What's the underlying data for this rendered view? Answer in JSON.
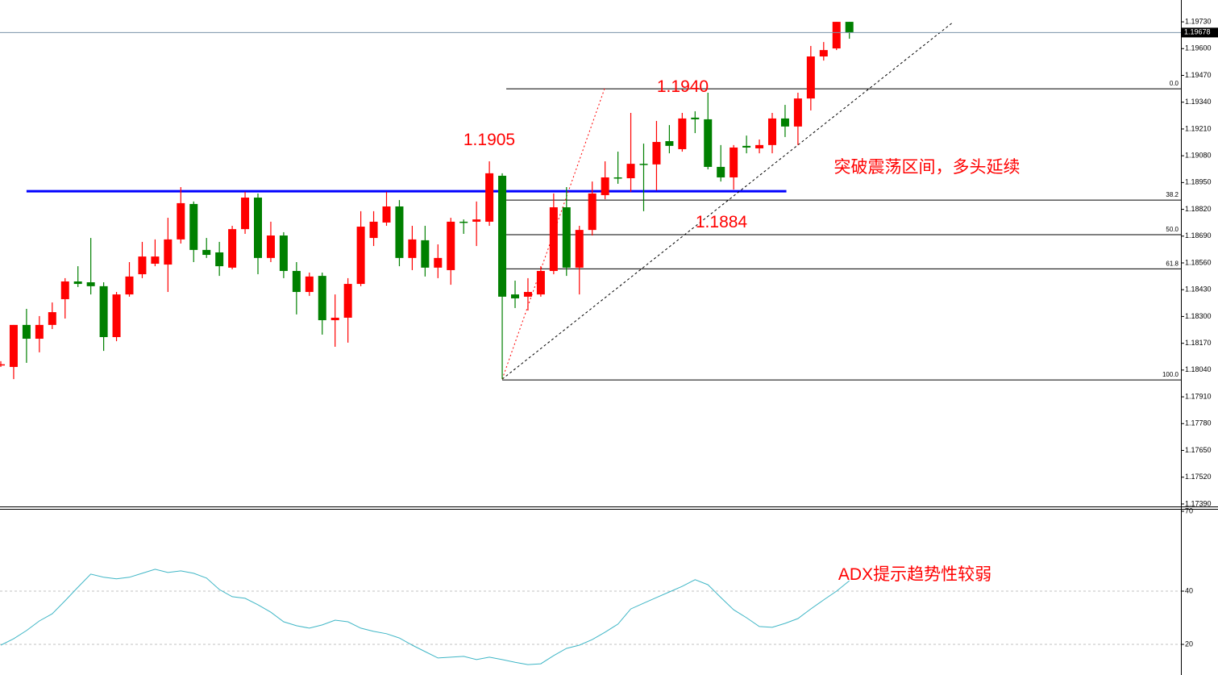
{
  "chart_data": [
    {
      "type": "candlestick",
      "up_color": "#ff0000",
      "down_color": "#008000",
      "open": [
        1.18067,
        1.18055,
        1.18259,
        1.18192,
        1.18259,
        1.18384,
        1.1847,
        1.18466,
        1.18447,
        1.182,
        1.18407,
        1.18505,
        1.18556,
        1.18552,
        1.18674,
        1.18846,
        1.18623,
        1.18611,
        1.18537,
        1.18724,
        1.18877,
        1.18584,
        1.18693,
        1.18521,
        1.18419,
        1.18497,
        1.18282,
        1.18294,
        1.18458,
        1.18681,
        1.18756,
        1.18834,
        1.18584,
        1.1867,
        1.18537,
        1.18525,
        1.1876,
        1.1876,
        1.1876,
        1.18983,
        1.18407,
        1.18396,
        1.18407,
        1.18521,
        1.1883,
        1.18537,
        1.1872,
        1.18889,
        1.18975,
        1.18971,
        1.19041,
        1.19038,
        1.19151,
        1.19112,
        1.19265,
        1.19257,
        1.19026,
        1.18975,
        1.19128,
        1.19116,
        1.19132,
        1.19261,
        1.19222,
        1.19358,
        1.19562,
        1.19601,
        1.1973
      ],
      "high": [
        1.18083,
        1.18259,
        1.18337,
        1.18302,
        1.18368,
        1.18486,
        1.18544,
        1.18681,
        1.18466,
        1.18419,
        1.18564,
        1.18662,
        1.18674,
        1.18779,
        1.18928,
        1.18858,
        1.18681,
        1.18662,
        1.1874,
        1.18905,
        1.18897,
        1.1876,
        1.18709,
        1.18564,
        1.18513,
        1.18513,
        1.18407,
        1.18486,
        1.18811,
        1.18811,
        1.18905,
        1.18865,
        1.1874,
        1.1874,
        1.1865,
        1.18779,
        1.18771,
        1.18858,
        1.19053,
        1.18995,
        1.18474,
        1.18486,
        1.18544,
        1.18897,
        1.18928,
        1.1874,
        1.18955,
        1.19053,
        1.191,
        1.19288,
        1.19139,
        1.19249,
        1.19229,
        1.19288,
        1.19296,
        1.19386,
        1.19132,
        1.19132,
        1.19178,
        1.19159,
        1.19288,
        1.19327,
        1.19386,
        1.19613,
        1.19632,
        1.1973,
        1.1973
      ],
      "low": [
        1.18055,
        1.17996,
        1.18075,
        1.18126,
        1.18239,
        1.1829,
        1.18443,
        1.18407,
        1.18133,
        1.1818,
        1.18396,
        1.18486,
        1.18544,
        1.18419,
        1.18654,
        1.18564,
        1.18584,
        1.18497,
        1.18529,
        1.18701,
        1.18505,
        1.18564,
        1.18486,
        1.1831,
        1.184,
        1.18212,
        1.18153,
        1.18173,
        1.18447,
        1.18642,
        1.1874,
        1.18544,
        1.18525,
        1.18494,
        1.18486,
        1.18454,
        1.18701,
        1.18642,
        1.1874,
        1.17996,
        1.18341,
        1.18329,
        1.18396,
        1.18505,
        1.18497,
        1.18407,
        1.18693,
        1.18869,
        1.18944,
        1.18905,
        1.18811,
        1.18912,
        1.19092,
        1.191,
        1.1919,
        1.19014,
        1.18955,
        1.18916,
        1.19092,
        1.19092,
        1.19092,
        1.19171,
        1.19132,
        1.193,
        1.19542,
        1.19593,
        1.19648
      ],
      "close": [
        1.18068,
        1.18259,
        1.18192,
        1.18259,
        1.18321,
        1.1847,
        1.18458,
        1.18447,
        1.182,
        1.18407,
        1.18494,
        1.18591,
        1.18591,
        1.18674,
        1.1885,
        1.18623,
        1.18599,
        1.18544,
        1.18724,
        1.18877,
        1.18584,
        1.18693,
        1.18521,
        1.18419,
        1.18494,
        1.18282,
        1.18294,
        1.18458,
        1.18736,
        1.1876,
        1.18834,
        1.18584,
        1.18674,
        1.18537,
        1.18584,
        1.1876,
        1.18758,
        1.18771,
        1.18995,
        1.18396,
        1.18388,
        1.18419,
        1.18521,
        1.1883,
        1.18537,
        1.1872,
        1.18897,
        1.18975,
        1.18971,
        1.19041,
        1.19038,
        1.19147,
        1.19128,
        1.19261,
        1.19257,
        1.19026,
        1.18975,
        1.1912,
        1.1912,
        1.19132,
        1.19261,
        1.19222,
        1.19358,
        1.19562,
        1.19593,
        1.1973,
        1.19679
      ],
      "ylim": [
        1.17378,
        1.19836
      ],
      "yticks": [
        {
          "value": 1.1973,
          "label": "1.19730"
        },
        {
          "value": 1.196,
          "label": "1.19600"
        },
        {
          "value": 1.1947,
          "label": "1.19470"
        },
        {
          "value": 1.1934,
          "label": "1.19340"
        },
        {
          "value": 1.1921,
          "label": "1.19210"
        },
        {
          "value": 1.1908,
          "label": "1.19080"
        },
        {
          "value": 1.1895,
          "label": "1.18950"
        },
        {
          "value": 1.1882,
          "label": "1.18820"
        },
        {
          "value": 1.1869,
          "label": "1.18690"
        },
        {
          "value": 1.1856,
          "label": "1.18560"
        },
        {
          "value": 1.1843,
          "label": "1.18430"
        },
        {
          "value": 1.183,
          "label": "1.18300"
        },
        {
          "value": 1.1817,
          "label": "1.18170"
        },
        {
          "value": 1.1804,
          "label": "1.18040"
        },
        {
          "value": 1.1791,
          "label": "1.17910"
        },
        {
          "value": 1.1778,
          "label": "1.17780"
        },
        {
          "value": 1.1765,
          "label": "1.17650"
        },
        {
          "value": 1.1752,
          "label": "1.17520"
        },
        {
          "value": 1.1739,
          "label": "1.17390"
        }
      ],
      "current_price": 1.19678,
      "resistance": {
        "value": 1.18908,
        "from": 2,
        "to": 61.1,
        "color": "#0000ff"
      },
      "fibonacci": {
        "from": 39,
        "levels": [
          {
            "label": "0.0",
            "price": 1.19405
          },
          {
            "label": "38.2",
            "price": 1.18865
          },
          {
            "label": "50.0",
            "price": 1.18697
          },
          {
            "label": "61.8",
            "price": 1.18531
          },
          {
            "label": "100.0",
            "price": 1.17992
          }
        ]
      },
      "trendlines": [
        {
          "x": [
            39,
            74.1
          ],
          "y": [
            1.17996,
            1.1973
          ],
          "color": "#000000",
          "dash": "3,3"
        },
        {
          "x": [
            39,
            47
          ],
          "y": [
            1.17996,
            1.19413
          ],
          "color": "#ff0000",
          "dash": "2,3"
        }
      ],
      "annotations": [
        "1.1905",
        "1.1940",
        "1.1884",
        "突破震荡区间，多头延续"
      ]
    },
    {
      "type": "line",
      "values": [
        19.7,
        22.1,
        25.2,
        28.8,
        31.5,
        36.4,
        41.5,
        46.4,
        45.2,
        44.6,
        45.2,
        46.7,
        48.2,
        47.0,
        47.6,
        46.7,
        44.9,
        40.6,
        37.9,
        37.3,
        34.9,
        32.1,
        28.5,
        27.0,
        26.1,
        27.3,
        29.1,
        28.5,
        26.1,
        24.9,
        24.0,
        22.4,
        19.7,
        17.3,
        14.9,
        15.2,
        15.5,
        14.3,
        15.2,
        14.3,
        13.3,
        12.4,
        12.7,
        15.8,
        18.5,
        19.7,
        21.8,
        24.6,
        27.6,
        33.3,
        35.5,
        37.6,
        39.7,
        41.8,
        44.3,
        42.4,
        37.6,
        33.0,
        30.0,
        26.7,
        26.4,
        27.9,
        29.7,
        33.3,
        36.7,
        40.0,
        43.9
      ],
      "color": "#3fb6c6",
      "ylim": [
        8.5,
        70.6
      ],
      "yticks": [
        70,
        40,
        20
      ],
      "grid_at": [
        40,
        20
      ],
      "annotations": [
        "ADX提示趋势性较弱"
      ]
    }
  ]
}
